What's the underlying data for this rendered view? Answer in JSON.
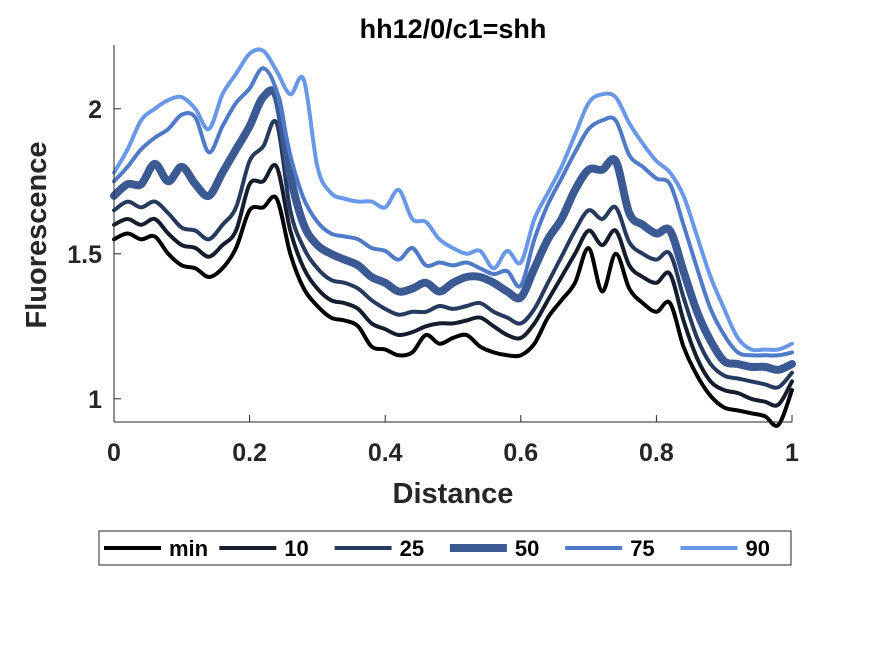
{
  "chart_data": {
    "type": "line",
    "title": "hh12/0/c1=shh",
    "xlabel": "Distance",
    "ylabel": "Fluorescence",
    "xlim": [
      0,
      1
    ],
    "ylim": [
      0.92,
      2.22
    ],
    "xticks": [
      0,
      0.2,
      0.4,
      0.6,
      0.8,
      1
    ],
    "xtick_labels": [
      "0",
      "0.2",
      "0.4",
      "0.6",
      "0.8",
      "1"
    ],
    "yticks": [
      1,
      1.5,
      2
    ],
    "ytick_labels": [
      "1",
      "1.5",
      "2"
    ],
    "grid": false,
    "legend": "bottom, horizontal",
    "x": [
      0,
      0.02,
      0.04,
      0.06,
      0.08,
      0.1,
      0.12,
      0.14,
      0.16,
      0.18,
      0.2,
      0.22,
      0.24,
      0.26,
      0.28,
      0.3,
      0.32,
      0.34,
      0.36,
      0.38,
      0.4,
      0.42,
      0.44,
      0.46,
      0.48,
      0.5,
      0.52,
      0.54,
      0.56,
      0.58,
      0.6,
      0.62,
      0.64,
      0.66,
      0.68,
      0.7,
      0.72,
      0.74,
      0.76,
      0.78,
      0.8,
      0.82,
      0.84,
      0.86,
      0.88,
      0.9,
      0.92,
      0.94,
      0.96,
      0.98,
      1.0
    ],
    "series": [
      {
        "name": "min",
        "color": "#000000",
        "width": 4,
        "values": [
          1.55,
          1.57,
          1.55,
          1.56,
          1.5,
          1.46,
          1.45,
          1.42,
          1.45,
          1.52,
          1.65,
          1.66,
          1.69,
          1.5,
          1.38,
          1.32,
          1.28,
          1.27,
          1.25,
          1.18,
          1.17,
          1.15,
          1.16,
          1.22,
          1.19,
          1.21,
          1.22,
          1.18,
          1.16,
          1.15,
          1.15,
          1.19,
          1.28,
          1.34,
          1.4,
          1.52,
          1.37,
          1.5,
          1.38,
          1.33,
          1.3,
          1.33,
          1.18,
          1.08,
          1.01,
          0.97,
          0.96,
          0.95,
          0.94,
          0.91,
          1.03
        ]
      },
      {
        "name": "10",
        "color": "#141c2e",
        "width": 4,
        "values": [
          1.6,
          1.62,
          1.6,
          1.62,
          1.57,
          1.53,
          1.52,
          1.49,
          1.53,
          1.58,
          1.74,
          1.75,
          1.8,
          1.58,
          1.45,
          1.38,
          1.34,
          1.33,
          1.31,
          1.26,
          1.24,
          1.22,
          1.23,
          1.25,
          1.26,
          1.26,
          1.27,
          1.28,
          1.25,
          1.22,
          1.21,
          1.26,
          1.34,
          1.42,
          1.5,
          1.58,
          1.53,
          1.58,
          1.46,
          1.42,
          1.4,
          1.43,
          1.27,
          1.14,
          1.06,
          1.03,
          1.02,
          1.0,
          0.99,
          0.98,
          1.06
        ]
      },
      {
        "name": "25",
        "color": "#263a5f",
        "width": 4,
        "values": [
          1.65,
          1.68,
          1.66,
          1.68,
          1.64,
          1.59,
          1.58,
          1.55,
          1.6,
          1.66,
          1.82,
          1.87,
          1.95,
          1.65,
          1.52,
          1.45,
          1.41,
          1.4,
          1.38,
          1.34,
          1.31,
          1.29,
          1.3,
          1.3,
          1.32,
          1.31,
          1.32,
          1.33,
          1.3,
          1.28,
          1.26,
          1.31,
          1.4,
          1.49,
          1.58,
          1.65,
          1.62,
          1.66,
          1.54,
          1.5,
          1.48,
          1.5,
          1.35,
          1.21,
          1.12,
          1.08,
          1.07,
          1.06,
          1.05,
          1.04,
          1.09
        ]
      },
      {
        "name": "50",
        "color": "#3b5a94",
        "width": 8,
        "values": [
          1.7,
          1.74,
          1.74,
          1.81,
          1.75,
          1.8,
          1.74,
          1.7,
          1.78,
          1.86,
          1.94,
          2.04,
          2.04,
          1.77,
          1.6,
          1.53,
          1.5,
          1.48,
          1.46,
          1.42,
          1.4,
          1.37,
          1.38,
          1.4,
          1.37,
          1.4,
          1.42,
          1.42,
          1.4,
          1.37,
          1.35,
          1.45,
          1.55,
          1.62,
          1.72,
          1.79,
          1.79,
          1.82,
          1.64,
          1.6,
          1.57,
          1.58,
          1.44,
          1.3,
          1.2,
          1.13,
          1.12,
          1.11,
          1.11,
          1.1,
          1.12
        ]
      },
      {
        "name": "75",
        "color": "#4f7ac8",
        "width": 4,
        "values": [
          1.75,
          1.8,
          1.86,
          1.9,
          1.93,
          1.98,
          1.97,
          1.85,
          1.94,
          2.02,
          2.07,
          2.14,
          2.06,
          1.84,
          1.69,
          1.61,
          1.57,
          1.56,
          1.55,
          1.52,
          1.51,
          1.48,
          1.52,
          1.46,
          1.47,
          1.46,
          1.47,
          1.45,
          1.43,
          1.44,
          1.39,
          1.55,
          1.67,
          1.76,
          1.85,
          1.93,
          1.96,
          1.96,
          1.84,
          1.8,
          1.76,
          1.74,
          1.6,
          1.45,
          1.31,
          1.22,
          1.16,
          1.15,
          1.15,
          1.15,
          1.16
        ]
      },
      {
        "name": "90",
        "color": "#6a98e8",
        "width": 4,
        "values": [
          1.78,
          1.86,
          1.96,
          2.0,
          2.03,
          2.04,
          2.0,
          1.93,
          2.05,
          2.12,
          2.19,
          2.2,
          2.13,
          2.05,
          2.1,
          1.8,
          1.71,
          1.69,
          1.68,
          1.68,
          1.66,
          1.72,
          1.62,
          1.61,
          1.55,
          1.52,
          1.5,
          1.51,
          1.45,
          1.51,
          1.47,
          1.62,
          1.71,
          1.8,
          1.91,
          2.02,
          2.05,
          2.04,
          1.95,
          1.88,
          1.82,
          1.78,
          1.7,
          1.56,
          1.42,
          1.31,
          1.21,
          1.17,
          1.17,
          1.17,
          1.19
        ]
      }
    ]
  }
}
